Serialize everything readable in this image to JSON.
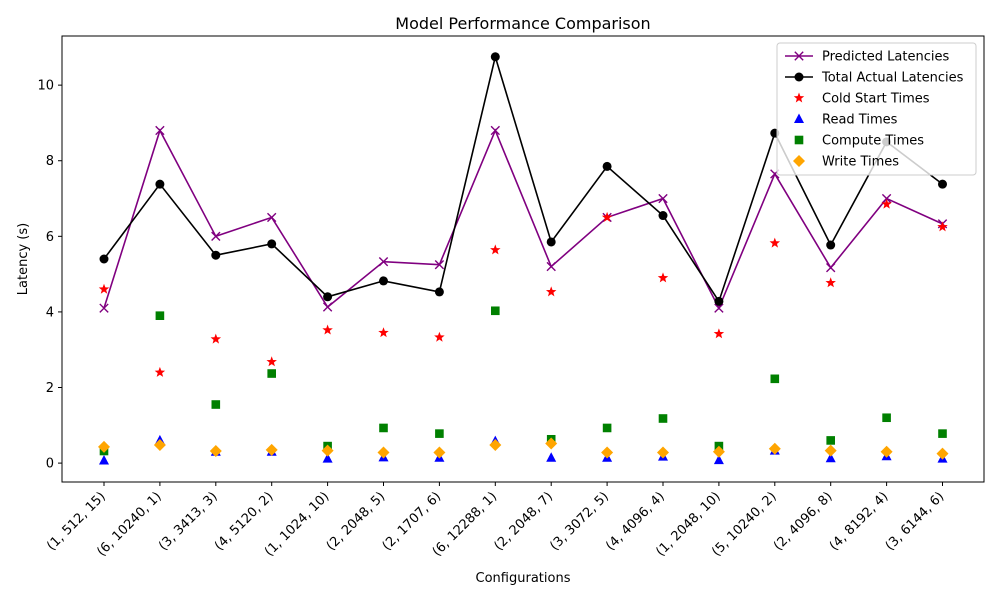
{
  "chart_data": {
    "type": "line",
    "title": "Model Performance Comparison",
    "xlabel": "Configurations",
    "ylabel": "Latency (s)",
    "ylim": [
      -0.5,
      11.3
    ],
    "yticks": [
      0,
      2,
      4,
      6,
      8,
      10
    ],
    "grid": false,
    "legend_position": "top-right",
    "categories": [
      "(1, 512, 15)",
      "(6, 10240, 1)",
      "(3, 3413, 3)",
      "(4, 5120, 2)",
      "(1, 1024, 10)",
      "(2, 2048, 5)",
      "(2, 1707, 6)",
      "(6, 12288, 1)",
      "(2, 2048, 7)",
      "(3, 3072, 5)",
      "(4, 4096, 4)",
      "(1, 2048, 10)",
      "(5, 10240, 2)",
      "(2, 4096, 8)",
      "(4, 8192, 4)",
      "(3, 6144, 6)"
    ],
    "series": [
      {
        "name": "Predicted Latencies",
        "style": "line",
        "marker": "x",
        "color": "#800080",
        "values": [
          4.1,
          8.8,
          6.0,
          6.5,
          4.13,
          5.33,
          5.25,
          8.8,
          5.2,
          6.5,
          7.0,
          4.1,
          7.65,
          5.17,
          7.0,
          6.33
        ]
      },
      {
        "name": "Total Actual Latencies",
        "style": "line",
        "marker": "circle",
        "color": "#000000",
        "values": [
          5.4,
          7.38,
          5.5,
          5.8,
          4.4,
          4.82,
          4.53,
          10.75,
          5.85,
          7.85,
          6.55,
          4.28,
          8.73,
          5.77,
          8.5,
          7.38
        ]
      },
      {
        "name": "Cold Start Times",
        "style": "scatter",
        "marker": "star",
        "color": "#ff0000",
        "values": [
          4.6,
          2.4,
          3.28,
          2.68,
          3.52,
          3.45,
          3.33,
          5.64,
          4.53,
          6.5,
          4.9,
          3.42,
          5.82,
          4.77,
          6.85,
          6.25
        ]
      },
      {
        "name": "Read Times",
        "style": "scatter",
        "marker": "triangle",
        "color": "#0000ff",
        "values": [
          0.07,
          0.6,
          0.3,
          0.3,
          0.12,
          0.15,
          0.14,
          0.58,
          0.14,
          0.14,
          0.17,
          0.08,
          0.33,
          0.13,
          0.18,
          0.12
        ]
      },
      {
        "name": "Compute Times",
        "style": "scatter",
        "marker": "square",
        "color": "#008000",
        "values": [
          0.32,
          3.9,
          1.55,
          2.37,
          0.45,
          0.93,
          0.78,
          4.03,
          0.63,
          0.93,
          1.18,
          0.45,
          2.23,
          0.6,
          1.2,
          0.78
        ]
      },
      {
        "name": "Write Times",
        "style": "scatter",
        "marker": "diamond",
        "color": "#ffa500",
        "values": [
          0.43,
          0.48,
          0.32,
          0.35,
          0.33,
          0.28,
          0.28,
          0.48,
          0.52,
          0.28,
          0.28,
          0.3,
          0.38,
          0.33,
          0.3,
          0.25
        ]
      }
    ]
  }
}
